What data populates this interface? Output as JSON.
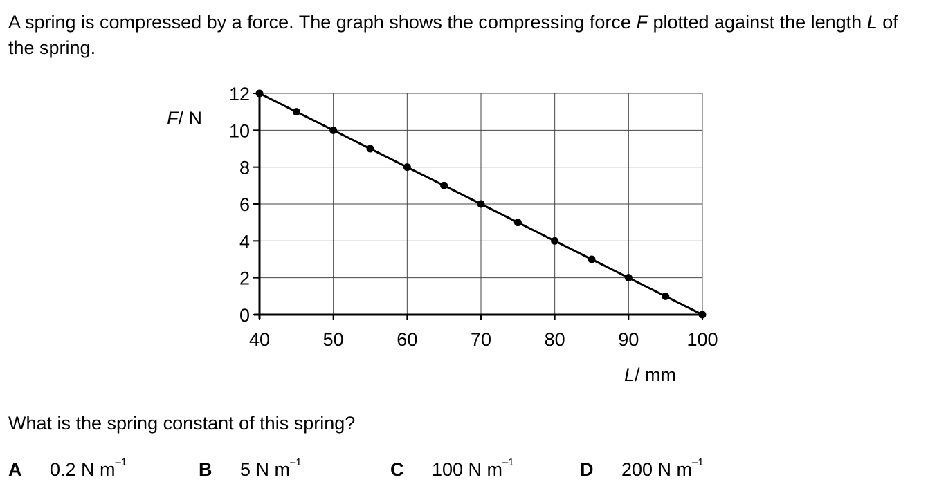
{
  "question": {
    "stem_part1": "A spring is compressed by a force. The graph shows the compressing force ",
    "stem_var1": "F",
    "stem_part2": " plotted against the length ",
    "stem_var2": "L",
    "stem_part3": " of the spring.",
    "prompt": "What is the spring constant of this spring?",
    "options": [
      {
        "letter": "A",
        "value": "0.2 N m",
        "exponent": "–1"
      },
      {
        "letter": "B",
        "value": "5 N m",
        "exponent": "–1"
      },
      {
        "letter": "C",
        "value": "100 N m",
        "exponent": "–1"
      },
      {
        "letter": "D",
        "value": "200 N m",
        "exponent": "–1"
      }
    ]
  },
  "chart_data": {
    "type": "line",
    "xlabel_var": "L",
    "xlabel_unit": "/ mm",
    "ylabel_var": "F",
    "ylabel_unit": "/ N",
    "xlim": [
      40,
      100
    ],
    "ylim": [
      0,
      12
    ],
    "x_ticks": [
      40,
      50,
      60,
      70,
      80,
      90,
      100
    ],
    "y_ticks": [
      0,
      2,
      4,
      6,
      8,
      10,
      12
    ],
    "grid": true,
    "x": [
      40,
      45,
      50,
      55,
      60,
      65,
      70,
      75,
      80,
      85,
      90,
      95,
      100
    ],
    "y": [
      12,
      11,
      10,
      9,
      8,
      7,
      6,
      5,
      4,
      3,
      2,
      1,
      0
    ]
  }
}
